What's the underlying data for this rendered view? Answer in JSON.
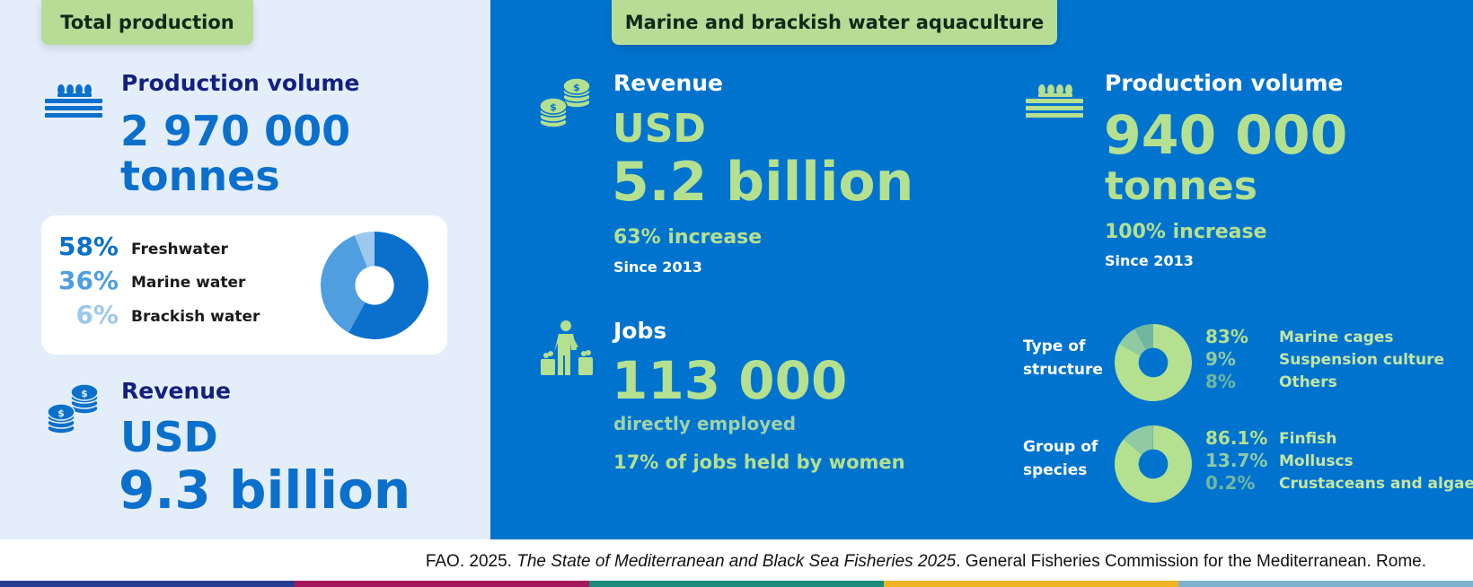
{
  "total": {
    "tag": "Total production",
    "production_label": "Production volume",
    "production_value": "2 970 000",
    "production_unit": "tonnes",
    "breakdown": [
      {
        "pct": "58%",
        "label": "Freshwater",
        "value": 58,
        "color": "#0b6fcc"
      },
      {
        "pct": "36%",
        "label": "Marine water",
        "value": 36,
        "color": "#4f9ee0"
      },
      {
        "pct": "6%",
        "label": "Brackish water",
        "value": 6,
        "color": "#9dc8ee"
      }
    ],
    "revenue_label": "Revenue",
    "revenue_currency": "USD",
    "revenue_value": "9.3 billion"
  },
  "marine": {
    "tag": "Marine and brackish water aquaculture",
    "revenue_label": "Revenue",
    "revenue_currency": "USD",
    "revenue_value": "5.2 billion",
    "revenue_change": "63% increase",
    "revenue_since": "Since 2013",
    "production_label": "Production volume",
    "production_value": "940 000",
    "production_unit": "tonnes",
    "production_change": "100% increase",
    "production_since": "Since 2013",
    "jobs_label": "Jobs",
    "jobs_value": "113 000",
    "jobs_sub": "directly employed",
    "jobs_women": "17% of jobs held by women",
    "structure": {
      "title": "Type of structure",
      "items": [
        {
          "pct": "83%",
          "label": "Marine cages",
          "value": 83,
          "color": "#b5e08f"
        },
        {
          "pct": "9%",
          "label": "Suspension culture",
          "value": 9,
          "color": "#8fcaa3"
        },
        {
          "pct": "8%",
          "label": "Others",
          "value": 8,
          "color": "#6fb79f"
        }
      ]
    },
    "species": {
      "title": "Group of species",
      "items": [
        {
          "pct": "86.1%",
          "label": "Finfish",
          "value": 86.1,
          "color": "#b5e08f"
        },
        {
          "pct": "13.7%",
          "label": "Molluscs",
          "value": 13.7,
          "color": "#8fcaa3"
        },
        {
          "pct": "0.2%",
          "label": "Crustaceans and algae",
          "value": 0.2,
          "color": "#6fb79f"
        }
      ]
    }
  },
  "footer": {
    "citation_pre": "FAO. 2025. ",
    "citation_title": "The State of Mediterranean and Black Sea Fisheries 2025",
    "citation_post": ". General Fisheries Commission for the Mediterranean. Rome."
  },
  "colors": {
    "left_bg": "#e3eefa",
    "right_bg": "#0073cf",
    "tag_green": "#b7dc96",
    "accent_green": "#b5e08f",
    "navy": "#13207f",
    "blue": "#0b6fcc",
    "stripes": [
      "#2a3c8f",
      "#a3195b",
      "#1a8a7a",
      "#f0b323",
      "#7fb2cf"
    ]
  },
  "icons": [
    "fish-crates-icon",
    "coins-icon",
    "worker-icon"
  ]
}
